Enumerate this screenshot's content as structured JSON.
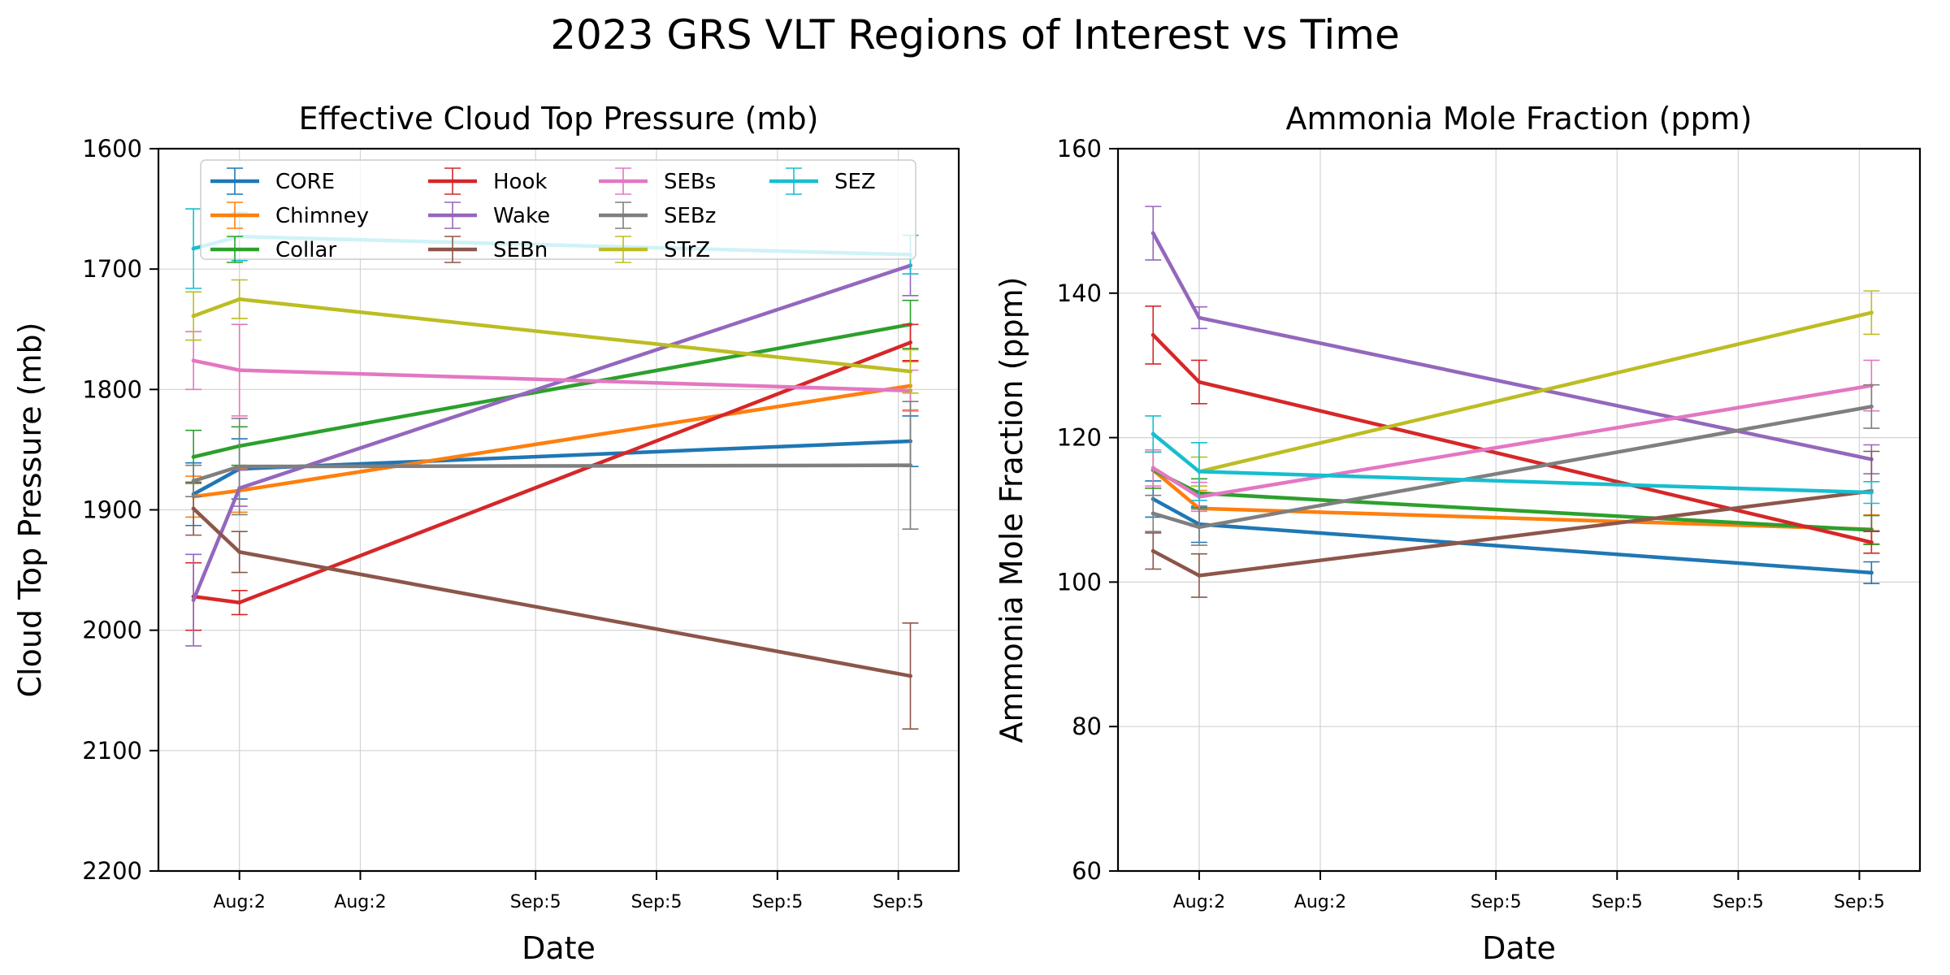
{
  "figure": {
    "title": "2023 GRS VLT Regions of Interest vs Time"
  },
  "chart_data": [
    {
      "type": "line",
      "title": "Effective Cloud Top Pressure (mb)",
      "xlabel": "Date",
      "ylabel": "Cloud Top Pressure (mb)",
      "ylim": [
        2200,
        1600
      ],
      "y_inverted": true,
      "yticks": [
        "1600",
        "1700",
        "1800",
        "1900",
        "2000",
        "2100",
        "2200"
      ],
      "xtick_labels": [
        "Aug:2",
        "Aug:2",
        "Sep:5",
        "Sep:5",
        "Sep:5",
        "Sep:5"
      ],
      "xtick_positions": [
        0,
        1,
        2.45,
        3.45,
        4.45,
        5.45
      ],
      "xlim": [
        -0.67,
        5.95
      ],
      "grid": true,
      "legend": {
        "placement": "top-left",
        "columns": 4
      },
      "series": [
        {
          "name": "CORE",
          "color": "#1f77b4",
          "x": [
            -0.38,
            0,
            5.55
          ],
          "y": [
            1887,
            1866,
            1843
          ],
          "err": [
            26,
            25,
            21
          ]
        },
        {
          "name": "Chimney",
          "color": "#ff7f0e",
          "x": [
            -0.38,
            0,
            5.55
          ],
          "y": [
            1889,
            1884,
            1797
          ],
          "err": [
            17,
            18,
            20
          ]
        },
        {
          "name": "Collar",
          "color": "#2ca02c",
          "x": [
            -0.38,
            0,
            5.55
          ],
          "y": [
            1856,
            1847,
            1746
          ],
          "err": [
            22,
            16,
            20
          ]
        },
        {
          "name": "Hook",
          "color": "#d62728",
          "x": [
            -0.38,
            0,
            5.55
          ],
          "y": [
            1972,
            1977,
            1761
          ],
          "err": [
            28,
            10,
            15
          ]
        },
        {
          "name": "Wake",
          "color": "#9467bd",
          "x": [
            -0.38,
            0,
            5.55
          ],
          "y": [
            1975,
            1882,
            1697
          ],
          "err": [
            38,
            15,
            25
          ]
        },
        {
          "name": "SEBn",
          "color": "#8c564b",
          "x": [
            -0.38,
            0,
            5.55
          ],
          "y": [
            1899,
            1935,
            2038
          ],
          "err": [
            22,
            17,
            44
          ]
        },
        {
          "name": "SEBs",
          "color": "#e377c2",
          "x": [
            -0.38,
            0,
            5.55
          ],
          "y": [
            1776,
            1784,
            1801
          ],
          "err": [
            24,
            38,
            17
          ]
        },
        {
          "name": "SEBz",
          "color": "#7f7f7f",
          "x": [
            -0.38,
            0,
            5.55
          ],
          "y": [
            1876,
            1864,
            1863
          ],
          "err": [
            13,
            40,
            53
          ]
        },
        {
          "name": "STrZ",
          "color": "#bcbd22",
          "x": [
            -0.38,
            0,
            5.55
          ],
          "y": [
            1739,
            1725,
            1785
          ],
          "err": [
            20,
            16,
            18
          ]
        },
        {
          "name": "SEZ",
          "color": "#17becf",
          "x": [
            -0.38,
            0,
            5.55
          ],
          "y": [
            1683,
            1673,
            1688
          ],
          "err": [
            33,
            20,
            16
          ]
        }
      ]
    },
    {
      "type": "line",
      "title": "Ammonia Mole Fraction (ppm)",
      "xlabel": "Date",
      "ylabel": "Ammonia Mole Fraction (ppm)",
      "ylim": [
        60,
        160
      ],
      "yticks": [
        "60",
        "80",
        "100",
        "120",
        "140",
        "160"
      ],
      "xtick_labels": [
        "Aug:2",
        "Aug:2",
        "Sep:5",
        "Sep:5",
        "Sep:5",
        "Sep:5"
      ],
      "xtick_positions": [
        0,
        1,
        2.45,
        3.45,
        4.45,
        5.45
      ],
      "xlim": [
        -0.67,
        5.95
      ],
      "grid": true,
      "series": [
        {
          "name": "CORE",
          "color": "#1f77b4",
          "x": [
            -0.38,
            0,
            5.55
          ],
          "y": [
            111.5,
            108.0,
            101.3
          ],
          "err": [
            2.5,
            2.5,
            1.5
          ]
        },
        {
          "name": "Chimney",
          "color": "#ff7f0e",
          "x": [
            -0.38,
            0,
            5.55
          ],
          "y": [
            115.5,
            110.2,
            107.3
          ],
          "err": [
            2.5,
            2.5,
            2.0
          ]
        },
        {
          "name": "Collar",
          "color": "#2ca02c",
          "x": [
            -0.38,
            0,
            5.55
          ],
          "y": [
            115.5,
            112.3,
            107.2
          ],
          "err": [
            2.5,
            2.0,
            2.0
          ]
        },
        {
          "name": "Hook",
          "color": "#d62728",
          "x": [
            -0.38,
            0,
            5.55
          ],
          "y": [
            134.2,
            127.7,
            105.5
          ],
          "err": [
            4.0,
            3.0,
            1.5
          ]
        },
        {
          "name": "Wake",
          "color": "#9467bd",
          "x": [
            -0.38,
            0,
            5.55
          ],
          "y": [
            148.3,
            136.6,
            117.0
          ],
          "err": [
            3.7,
            1.5,
            2.0
          ]
        },
        {
          "name": "SEBn",
          "color": "#8c564b",
          "x": [
            -0.38,
            0,
            5.55
          ],
          "y": [
            104.3,
            100.9,
            112.6
          ],
          "err": [
            2.5,
            3.0,
            5.5
          ]
        },
        {
          "name": "SEBs",
          "color": "#e377c2",
          "x": [
            -0.38,
            0,
            5.55
          ],
          "y": [
            115.8,
            111.8,
            127.2
          ],
          "err": [
            2.5,
            2.0,
            3.5
          ]
        },
        {
          "name": "SEBz",
          "color": "#7f7f7f",
          "x": [
            -0.38,
            0,
            5.55
          ],
          "y": [
            109.5,
            107.6,
            124.3
          ],
          "err": [
            2.5,
            2.5,
            3.0
          ]
        },
        {
          "name": "STrZ",
          "color": "#bcbd22",
          "x": [
            -0.38,
            0,
            5.55
          ],
          "y": [
            null,
            115.3,
            137.3
          ],
          "err": [
            null,
            2.0,
            3.0
          ]
        },
        {
          "name": "SEZ",
          "color": "#17becf",
          "x": [
            -0.38,
            0,
            5.55
          ],
          "y": [
            120.5,
            115.3,
            112.4
          ],
          "err": [
            2.5,
            4.0,
            1.5
          ]
        }
      ]
    }
  ]
}
